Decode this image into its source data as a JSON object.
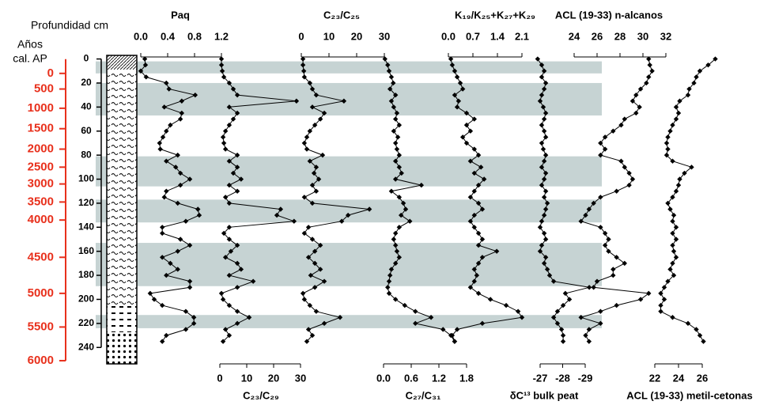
{
  "chart_data": {
    "type": "depth-profile",
    "depth_label": "Profundidad cm",
    "age_label_lines": [
      "Años",
      "cal. AP"
    ],
    "ylim": [
      -3,
      253
    ],
    "yticks": [
      0,
      20,
      40,
      60,
      80,
      100,
      120,
      140,
      160,
      180,
      200,
      220,
      240
    ],
    "age_ticks": [
      0,
      500,
      1000,
      1500,
      2000,
      2500,
      3000,
      3500,
      4000,
      4500,
      5000,
      5500,
      6000
    ],
    "age_tick_depths": [
      12,
      25,
      41,
      58,
      75,
      90,
      104,
      119,
      134,
      165,
      195,
      223,
      251
    ],
    "age_color": "#e8301c",
    "shaded_intervals": [
      [
        2,
        12
      ],
      [
        20,
        47
      ],
      [
        81,
        106
      ],
      [
        117,
        136
      ],
      [
        153,
        189
      ],
      [
        213,
        224
      ]
    ],
    "shade_color": "#c6d3d3",
    "color": "#000000",
    "depths": [
      0,
      5,
      10,
      15,
      20,
      25,
      30,
      35,
      40,
      45,
      50,
      55,
      60,
      65,
      70,
      75,
      80,
      85,
      90,
      95,
      100,
      105,
      110,
      115,
      120,
      125,
      130,
      135,
      140,
      145,
      150,
      155,
      160,
      165,
      170,
      175,
      180,
      185,
      190,
      195,
      200,
      205,
      210,
      215,
      220,
      225,
      230,
      235
    ],
    "panels": [
      {
        "title": "Paq",
        "axis": "top",
        "xlim": [
          0,
          1.2
        ],
        "xticks": [
          {
            "value": 0,
            "label": "0.0"
          },
          0.4,
          0.8,
          1.2
        ],
        "values": [
          0.06,
          0.07,
          0,
          0.08,
          0.38,
          0.42,
          0.81,
          0.61,
          0.35,
          0.61,
          0.59,
          0.44,
          0.38,
          0.33,
          0.28,
          0.29,
          0.55,
          0.38,
          0.52,
          0.59,
          0.73,
          0.59,
          0.38,
          0.35,
          0.55,
          0.85,
          0.87,
          0.67,
          0.32,
          0.32,
          0.59,
          0.73,
          0.55,
          0.32,
          0.44,
          0.55,
          0.38,
          0.73,
          0.73,
          0.14,
          0.2,
          0.32,
          0.67,
          0.79,
          0.79,
          0.67,
          0.38,
          0.32
        ]
      },
      {
        "title": "C₂₃/C₂₉",
        "axis": "bottom",
        "xlim": [
          0,
          30
        ],
        "xticks": [
          0,
          10,
          20,
          30
        ],
        "values": [
          0.6,
          0.6,
          0.9,
          1.5,
          3.5,
          5,
          6.5,
          28.5,
          3.5,
          6.5,
          5,
          3.5,
          2.1,
          1.2,
          1.5,
          2.1,
          6.5,
          3.5,
          6.5,
          5,
          7.9,
          3.5,
          6.5,
          2.1,
          3.5,
          22.6,
          21.2,
          27.6,
          3.5,
          1.5,
          3.5,
          6.5,
          4.1,
          2.1,
          6.5,
          7.9,
          3.5,
          12.4,
          6.5,
          0.6,
          1.2,
          3.5,
          6.5,
          10.9,
          6.5,
          2.1,
          3.5,
          1.2
        ]
      },
      {
        "title": "C₂₃/C₂₅",
        "axis": "top",
        "xlim": [
          0,
          30
        ],
        "xticks": [
          0,
          10,
          20,
          30
        ],
        "values": [
          0.6,
          0.6,
          0.9,
          1.1,
          3.1,
          4,
          5.4,
          15.4,
          4,
          8.3,
          6.9,
          4.9,
          3.1,
          2,
          1.1,
          2,
          7.7,
          3.1,
          5.4,
          4.6,
          6.3,
          4,
          5.4,
          1.1,
          4,
          24.6,
          16.9,
          14.6,
          2.6,
          1.1,
          4,
          6.9,
          4.9,
          2.6,
          4.9,
          6.9,
          3.4,
          8.3,
          4.9,
          0.6,
          1.1,
          3.1,
          5.4,
          14,
          8.3,
          2.6,
          4,
          2
        ]
      },
      {
        "title": "C₂₇/C₃₁",
        "axis": "bottom",
        "xlim": [
          0,
          1.8
        ],
        "xticks": [
          {
            "value": 0,
            "label": "0.0"
          },
          0.6,
          1.2,
          1.8
        ],
        "values": [
          0.03,
          0.09,
          0.12,
          0.17,
          0.21,
          0.14,
          0.26,
          0.17,
          0.22,
          0.29,
          0.26,
          0.34,
          0.22,
          0.31,
          0.26,
          0.29,
          0.34,
          0.26,
          0.34,
          0.39,
          0.26,
          0.82,
          0.17,
          0.34,
          0.43,
          0.48,
          0.38,
          0.57,
          0.34,
          0.26,
          0.22,
          0.26,
          0.29,
          0.34,
          0.26,
          0.17,
          0.14,
          0.12,
          0.09,
          0.12,
          0.26,
          0.46,
          0.69,
          1.03,
          0.69,
          1.29,
          1.46,
          1.54
        ]
      },
      {
        "title": "K₁₉/K₂₅+K₂₇+K₂₉",
        "axis": "top",
        "xlim": [
          0,
          2.1
        ],
        "xticks": [
          {
            "value": 0,
            "label": "0.0"
          },
          0.7,
          1.4,
          2.1
        ],
        "values": [
          0.07,
          0.11,
          0.18,
          0.25,
          0.34,
          0.41,
          0.18,
          0.29,
          0.25,
          0.52,
          0.74,
          0.52,
          0.63,
          0.41,
          0.52,
          0.74,
          0.86,
          0.63,
          0.93,
          0.74,
          1.02,
          0.86,
          0.74,
          0.63,
          0.86,
          0.97,
          0.74,
          0.63,
          0.74,
          0.86,
          0.97,
          0.86,
          1.38,
          0.97,
          0.86,
          0.74,
          0.81,
          0.74,
          0.63,
          0.86,
          1.2,
          1.65,
          1.99,
          2.1,
          0.97,
          0.25,
          0.11,
          0.18
        ]
      },
      {
        "title": "δC¹³ bulk peat",
        "axis": "bottom",
        "xlim": [
          -27,
          -29
        ],
        "xticks": [
          -27,
          -28,
          -29
        ],
        "values": [
          -26.89,
          -27.07,
          -27.18,
          -27.07,
          -27.25,
          -27.18,
          -27.07,
          -27,
          -27.14,
          -27.25,
          -27.18,
          -27.07,
          -27.18,
          -27.25,
          -27.07,
          -27.14,
          -27.25,
          -27.18,
          -27.07,
          -27.25,
          -27.18,
          -27.07,
          -27.25,
          -27.18,
          -27.32,
          -27.25,
          -27.18,
          -27.07,
          -27,
          -27.18,
          -27.25,
          -27.07,
          -27,
          -27.25,
          -27.18,
          -27.32,
          -27.42,
          -27.6,
          -29.18,
          -28.12,
          -28.3,
          -28.02,
          -27.77,
          -27.6,
          -27.77,
          -27.95,
          -28.02,
          -28.02
        ]
      },
      {
        "title": "ACL (19-33) n-alcanos",
        "axis": "top",
        "xlim": [
          24,
          32
        ],
        "xticks": [
          24,
          26,
          28,
          30,
          32
        ],
        "values": [
          30.5,
          30.6,
          30.8,
          30.5,
          30.3,
          29.8,
          29.4,
          29.1,
          29.7,
          29.4,
          28.4,
          28.1,
          27.4,
          26.7,
          26.3,
          26.7,
          26.3,
          28.1,
          28.4,
          28.8,
          29.1,
          28.8,
          27.7,
          26.3,
          25.7,
          25.3,
          25,
          24.6,
          26.3,
          26.7,
          27,
          26.7,
          27,
          27.7,
          28.4,
          27.4,
          27.4,
          26,
          25.7,
          30.5,
          29.8,
          27.7,
          26.3,
          24.6,
          26.3,
          25.3,
          25,
          25.3
        ]
      },
      {
        "title": "ACL (19-33) metil-cetonas",
        "axis": "bottom",
        "xlim": [
          22,
          26
        ],
        "xticks": [
          22,
          24,
          26
        ],
        "values": [
          27.1,
          26.5,
          25.8,
          25.5,
          25.3,
          24.9,
          24.8,
          24.1,
          23.8,
          24,
          23.8,
          23.5,
          23.3,
          23.1,
          23,
          23.1,
          23,
          23.5,
          25.1,
          24.5,
          24.1,
          24,
          23.8,
          23.5,
          23.1,
          23.3,
          23.6,
          23.5,
          23.8,
          23.5,
          23.8,
          23.5,
          23.6,
          23.8,
          23.5,
          23.3,
          23.6,
          23.1,
          22.8,
          22.5,
          22.8,
          22.5,
          22.5,
          23.5,
          24.8,
          25.5,
          25.8,
          26.1
        ]
      }
    ]
  }
}
